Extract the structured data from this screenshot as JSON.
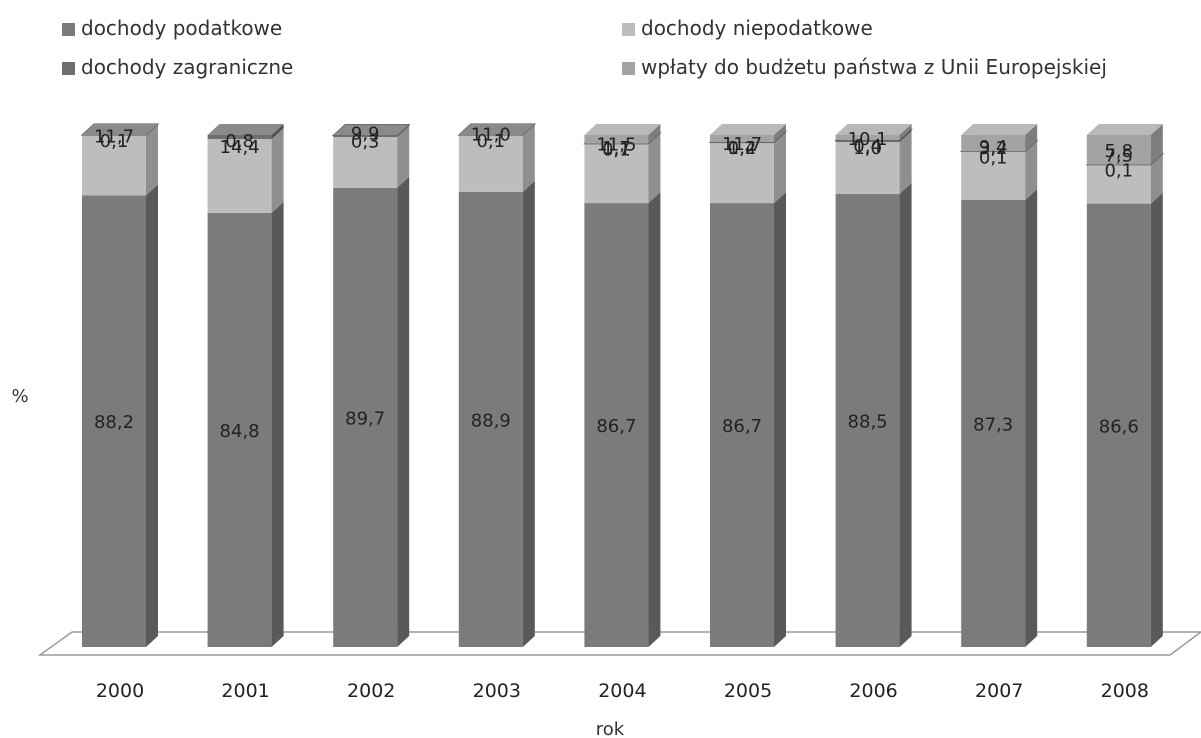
{
  "chart_data": {
    "type": "bar",
    "stacked": true,
    "style": "3d-stacked-column",
    "title": "",
    "xlabel": "rok",
    "ylabel": "%",
    "ylim": [
      0,
      100
    ],
    "grid": false,
    "legend_position": "top",
    "categories": [
      "2000",
      "2001",
      "2002",
      "2003",
      "2004",
      "2005",
      "2006",
      "2007",
      "2008"
    ],
    "series": [
      {
        "name": "dochody podatkowe",
        "color": "#7b7b7b",
        "values": [
          88.2,
          84.8,
          89.7,
          88.9,
          86.7,
          86.7,
          88.5,
          87.3,
          86.6
        ]
      },
      {
        "name": "dochody niepodatkowe",
        "color": "#bdbdbd",
        "values": [
          11.7,
          14.4,
          9.9,
          11.0,
          11.5,
          11.7,
          10.1,
          9.4,
          7.5
        ]
      },
      {
        "name": "dochody zagraniczne",
        "color": "#6e6e6e",
        "values": [
          0.1,
          0.8,
          0.3,
          0.1,
          0.1,
          0.2,
          0.4,
          0.1,
          0.1
        ]
      },
      {
        "name": "wpłaty do budżetu państwa z Unii Europejskiej",
        "color": "#a3a3a3",
        "values": [
          null,
          null,
          null,
          null,
          1.7,
          1.4,
          1.0,
          3.2,
          5.8
        ]
      }
    ],
    "data_labels": [
      [
        "88,2",
        "11,7",
        "0,1",
        ""
      ],
      [
        "84,8",
        "14,4",
        "0,8",
        ""
      ],
      [
        "89,7",
        "9,9",
        "0,3",
        ""
      ],
      [
        "88,9",
        "11,0",
        "0,1",
        ""
      ],
      [
        "86,7",
        "11,5",
        "0,1",
        "1,7"
      ],
      [
        "86,7",
        "11,7",
        "0,2",
        "1,4"
      ],
      [
        "88,5",
        "10,1",
        "0,4",
        "1,0"
      ],
      [
        "87,3",
        "9,4",
        "0,1",
        "3,2"
      ],
      [
        "86,6",
        "7,5",
        "0,1",
        "5,8"
      ]
    ]
  }
}
